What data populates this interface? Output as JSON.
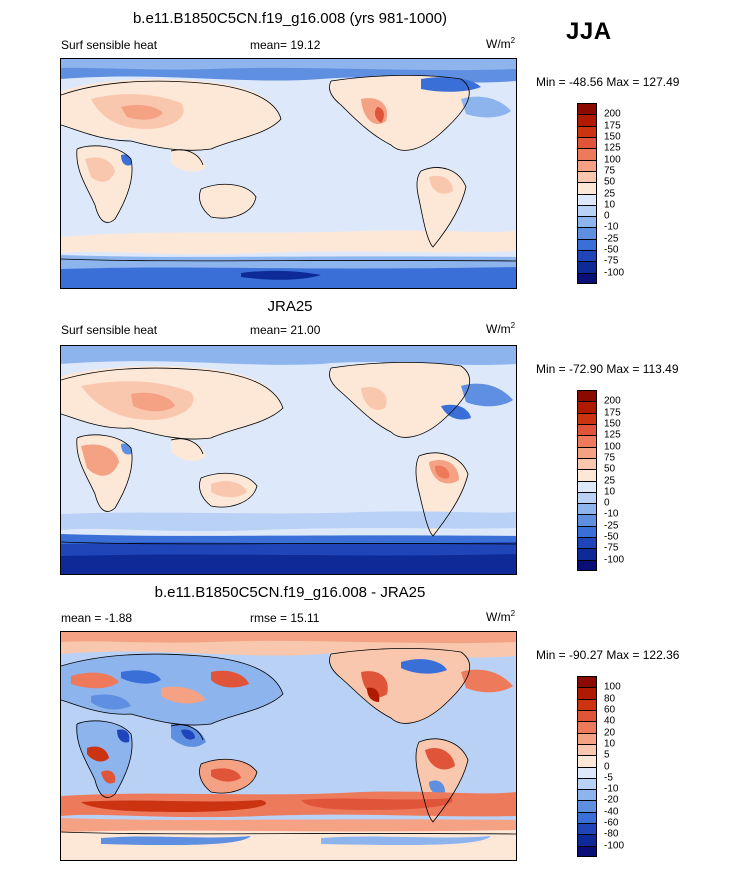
{
  "season": "JJA",
  "panels": [
    {
      "title": "b.e11.B1850C5CN.f19_g16.008 (yrs 981-1000)",
      "left_label": "Surf sensible heat",
      "center_label": "mean=  19.12",
      "units": "W/m",
      "units_sup": "2",
      "minmax": "Min = -48.56 Max = 127.49",
      "colorbar": {
        "labels": [
          "200",
          "175",
          "150",
          "125",
          "100",
          "75",
          "50",
          "25",
          "10",
          "0",
          "-10",
          "-25",
          "-50",
          "-75",
          "-100"
        ],
        "colors": [
          "#8b0a00",
          "#b01a00",
          "#cc3311",
          "#e0543a",
          "#ee7a5c",
          "#f4a184",
          "#f9c7ae",
          "#fde8d8",
          "#dde9fb",
          "#b8d1f5",
          "#8eb4ee",
          "#5f8fe0",
          "#3a6fd8",
          "#1f45b8",
          "#0e2a96",
          "#0a0f78"
        ]
      }
    },
    {
      "title": "JRA25",
      "left_label": "Surf sensible heat",
      "center_label": "mean=  21.00",
      "units": "W/m",
      "units_sup": "2",
      "minmax": "Min = -72.90 Max = 113.49",
      "colorbar": {
        "labels": [
          "200",
          "175",
          "150",
          "125",
          "100",
          "75",
          "50",
          "25",
          "10",
          "0",
          "-10",
          "-25",
          "-50",
          "-75",
          "-100"
        ],
        "colors": [
          "#8b0a00",
          "#b01a00",
          "#cc3311",
          "#e0543a",
          "#ee7a5c",
          "#f4a184",
          "#f9c7ae",
          "#fde8d8",
          "#dde9fb",
          "#b8d1f5",
          "#8eb4ee",
          "#5f8fe0",
          "#3a6fd8",
          "#1f45b8",
          "#0e2a96",
          "#0a0f78"
        ]
      }
    },
    {
      "title": "b.e11.B1850C5CN.f19_g16.008 - JRA25",
      "left_label": "mean =  -1.88",
      "center_label": "rmse =  15.11",
      "units": "W/m",
      "units_sup": "2",
      "minmax": "Min = -90.27 Max = 122.36",
      "colorbar": {
        "labels": [
          "100",
          "80",
          "60",
          "40",
          "20",
          "10",
          "5",
          "0",
          "-5",
          "-10",
          "-20",
          "-40",
          "-60",
          "-80",
          "-100"
        ],
        "colors": [
          "#8b0a00",
          "#b01a00",
          "#cc3311",
          "#e0543a",
          "#ee7a5c",
          "#f4a184",
          "#f9c7ae",
          "#fde8d8",
          "#dde9fb",
          "#b8d1f5",
          "#8eb4ee",
          "#5f8fe0",
          "#3a6fd8",
          "#1f45b8",
          "#0e2a96",
          "#0a0f78"
        ]
      }
    }
  ]
}
